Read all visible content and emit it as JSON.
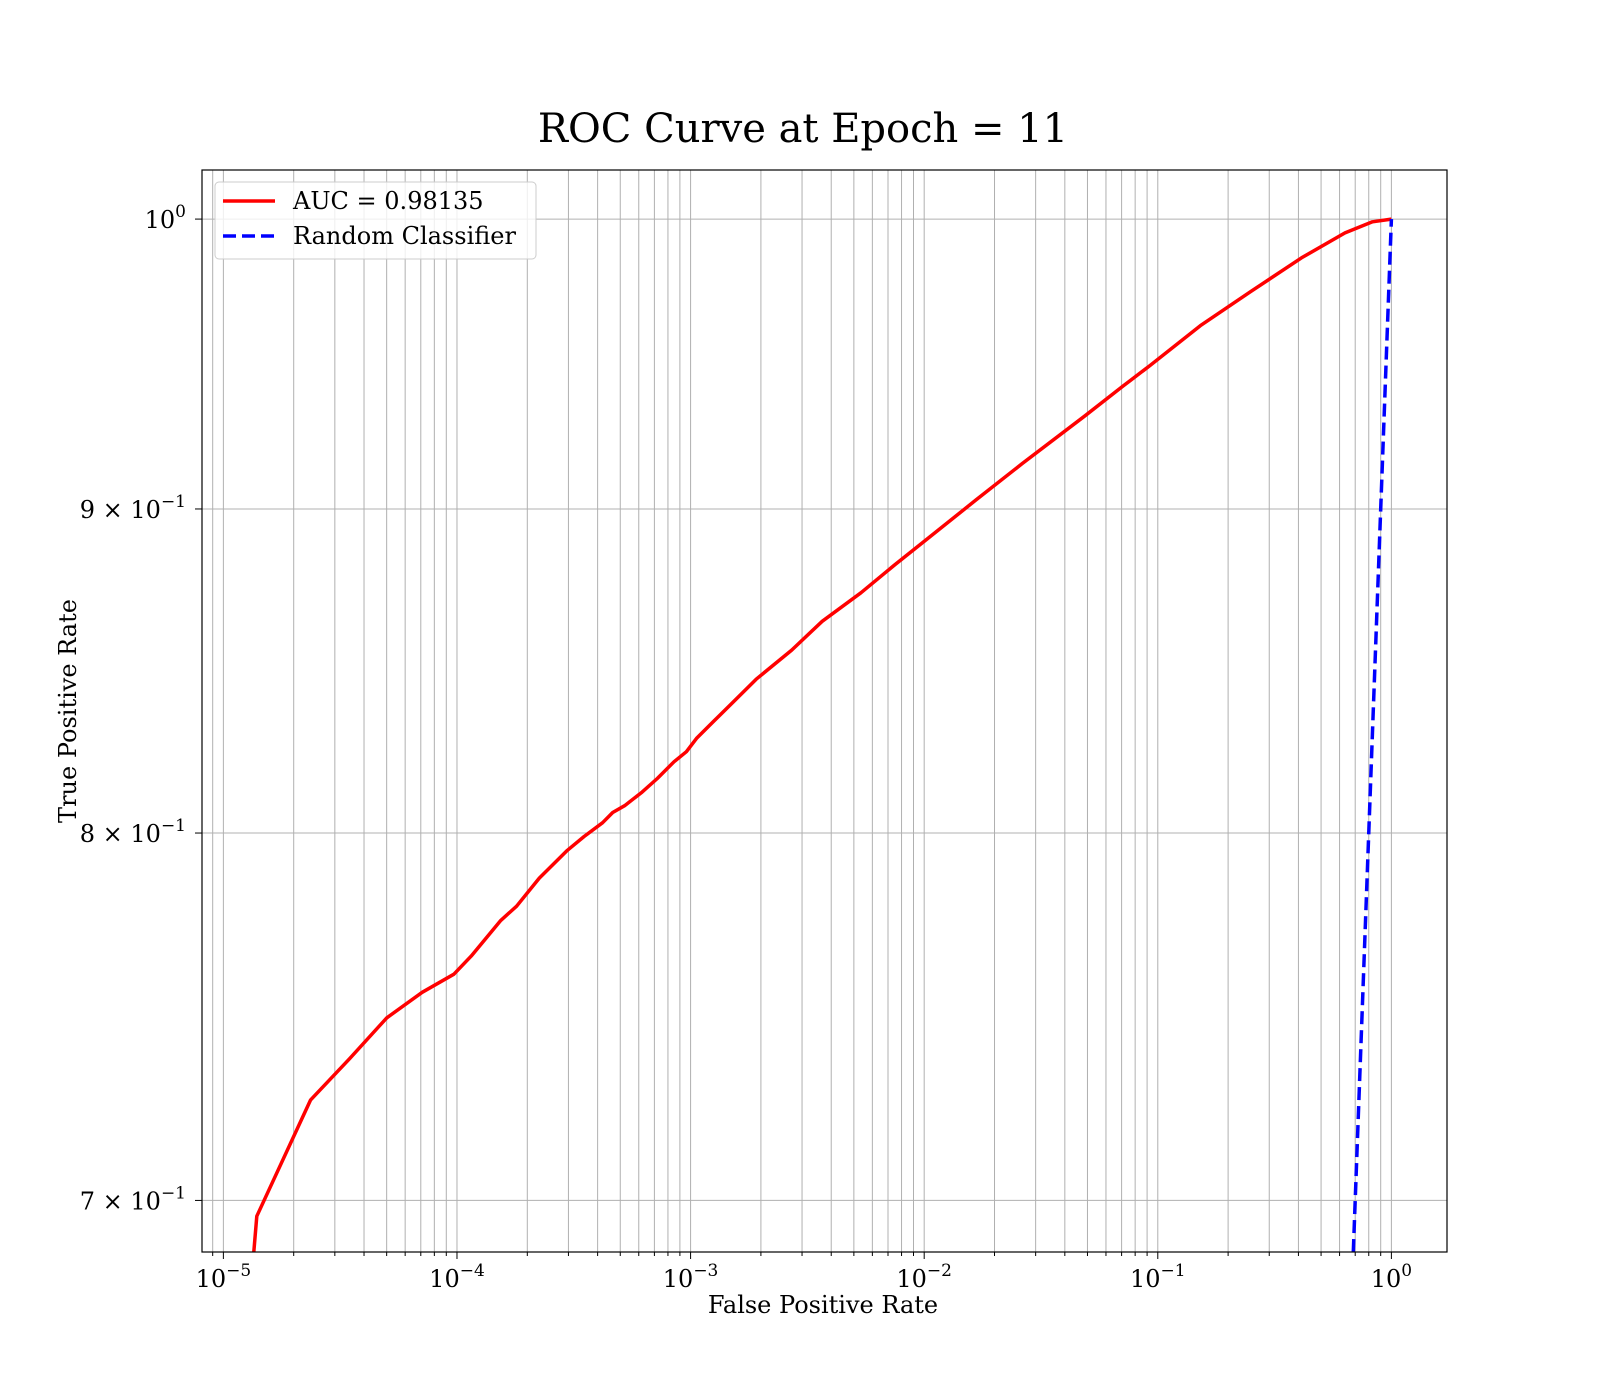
{
  "chart_data": {
    "type": "line",
    "title": "ROC Curve at Epoch = 11",
    "xlabel": "False Positive Rate",
    "ylabel": "True Positive Rate",
    "xscale": "log",
    "yscale": "log",
    "xlim": [
      8.1e-06,
      1.73
    ],
    "ylim": [
      0.687,
      1.018
    ],
    "grid": "both-major-and-minor-x, major-y",
    "legend_placement": "upper-left",
    "x_ticks": [
      {
        "value": 1e-05,
        "base": "10",
        "exp": "−5"
      },
      {
        "value": 0.0001,
        "base": "10",
        "exp": "−4"
      },
      {
        "value": 0.001,
        "base": "10",
        "exp": "−3"
      },
      {
        "value": 0.01,
        "base": "10",
        "exp": "−2"
      },
      {
        "value": 0.1,
        "base": "10",
        "exp": "−1"
      },
      {
        "value": 1,
        "base": "10",
        "exp": "0"
      }
    ],
    "y_ticks": [
      {
        "value": 1.0,
        "mant": "",
        "base": "10",
        "exp": "0"
      },
      {
        "value": 0.9,
        "mant": "9 × ",
        "base": "10",
        "exp": "−1"
      },
      {
        "value": 0.8,
        "mant": "8 × ",
        "base": "10",
        "exp": "−1"
      },
      {
        "value": 0.7,
        "mant": "7 × ",
        "base": "10",
        "exp": "−1"
      }
    ],
    "series": [
      {
        "name": "AUC = 0.98135",
        "color": "#ff0000",
        "style": "solid",
        "x": [
          1.35e-05,
          1.39e-05,
          2.36e-05,
          3.47e-05,
          5e-05,
          7.1e-05,
          9.7e-05,
          0.000115,
          0.000154,
          0.00018,
          0.000225,
          0.000297,
          0.00035,
          0.00042,
          0.000464,
          0.000522,
          0.00062,
          0.00072,
          0.00085,
          0.00096,
          0.00106,
          0.00125,
          0.00152,
          0.00191,
          0.00271,
          0.00366,
          0.00536,
          0.0075,
          0.0102,
          0.0167,
          0.0263,
          0.0488,
          0.0707,
          0.0921,
          0.152,
          0.25,
          0.412,
          0.633,
          0.83,
          1.0
        ],
        "y": [
          0.687,
          0.696,
          0.726,
          0.737,
          0.748,
          0.755,
          0.76,
          0.765,
          0.775,
          0.779,
          0.787,
          0.795,
          0.799,
          0.803,
          0.806,
          0.808,
          0.812,
          0.816,
          0.821,
          0.824,
          0.828,
          0.833,
          0.839,
          0.846,
          0.855,
          0.864,
          0.873,
          0.882,
          0.89,
          0.903,
          0.915,
          0.931,
          0.941,
          0.948,
          0.962,
          0.974,
          0.986,
          0.995,
          0.999,
          1.0
        ]
      },
      {
        "name": "Random Classifier",
        "color": "#0000ff",
        "style": "dashed",
        "x": [
          0.687,
          1.0
        ],
        "y": [
          0.687,
          1.0
        ]
      }
    ]
  }
}
